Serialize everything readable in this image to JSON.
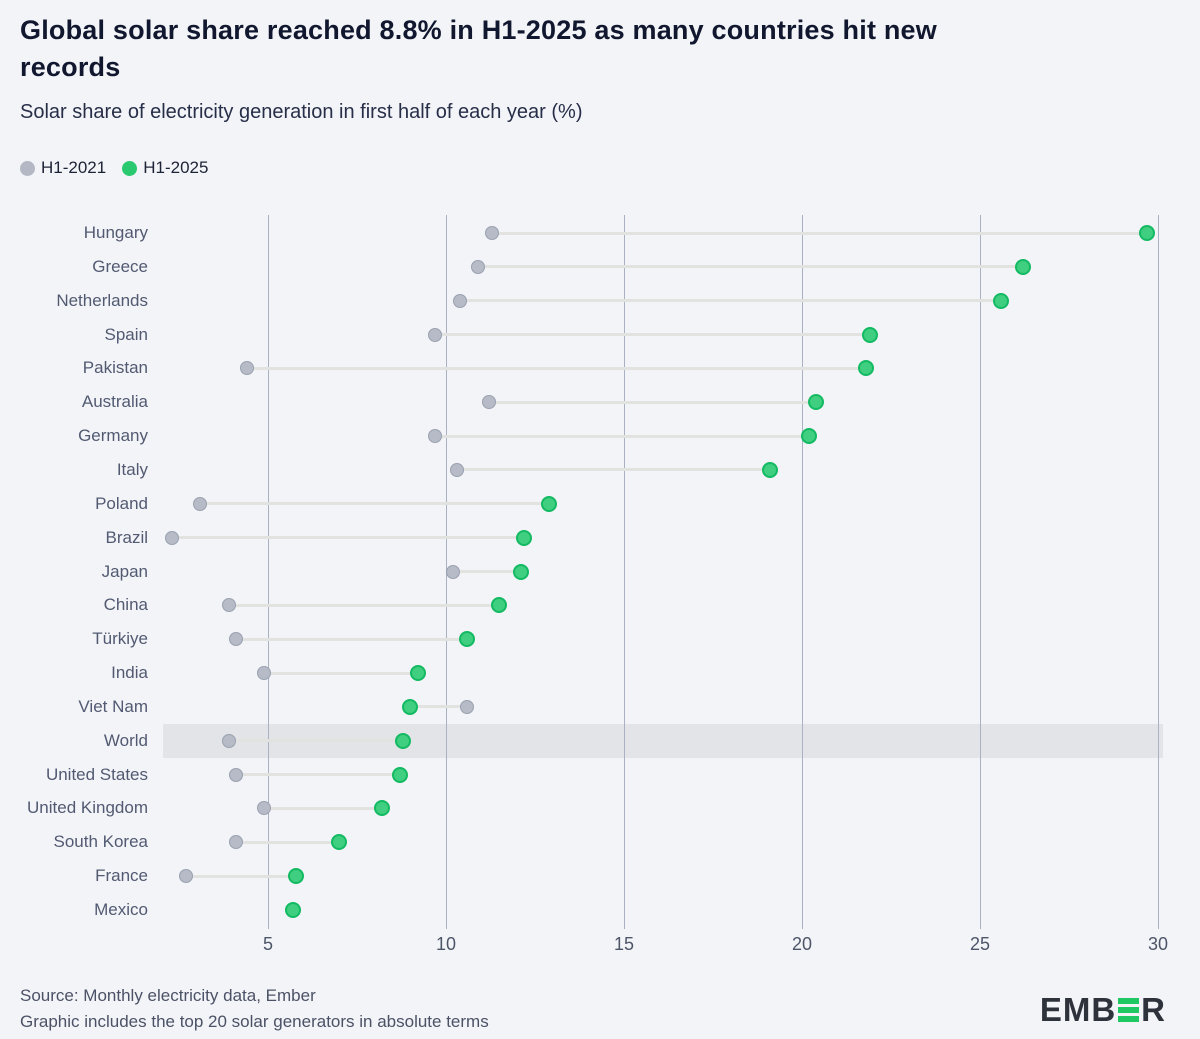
{
  "title": "Global solar share reached 8.8% in H1-2025 as many countries hit new\nrecords",
  "subtitle": "Solar share of electricity generation in first half of each year (%)",
  "legend": [
    {
      "label": "H1-2021",
      "color": "#b3b8c4"
    },
    {
      "label": "H1-2025",
      "color": "#2bc96f"
    }
  ],
  "footer": {
    "source_line": "Source: Monthly electricity data, Ember",
    "note_line": "Graphic includes the top 20 solar generators in absolute terms"
  },
  "logo": {
    "left_text": "EMB",
    "right_text": "R",
    "bars_icon": "ember-green-e-icon"
  },
  "colors": {
    "background": "#f3f4f8",
    "title_text": "#10172e",
    "axis_text": "#4d5568",
    "label_text": "#525a72",
    "gridline": "#aab1c3",
    "connector": "#e2e2e0",
    "gray_dot_fill": "#b6bbc7",
    "gray_dot_border": "#99a0af",
    "green_dot_fill": "#40ce81",
    "green_dot_border": "#13ba62",
    "highlight_band": "#e3e4e8",
    "logo_green": "#1fc863"
  },
  "chart_data": {
    "type": "scatter",
    "subtype": "dumbbell-dot-plot",
    "unit": "%",
    "xlabel": "",
    "ylabel": "",
    "x_ticks": [
      5,
      10,
      15,
      20,
      25,
      30
    ],
    "x_range": [
      2.05,
      30.2
    ],
    "grid": "vertical-only",
    "legend_position": "top-left",
    "series_names": [
      "H1-2021",
      "H1-2025"
    ],
    "rows": [
      {
        "country": "Hungary",
        "h1_2021": 11.3,
        "h1_2025": 29.7,
        "highlight": false
      },
      {
        "country": "Greece",
        "h1_2021": 10.9,
        "h1_2025": 26.2,
        "highlight": false
      },
      {
        "country": "Netherlands",
        "h1_2021": 10.4,
        "h1_2025": 25.6,
        "highlight": false
      },
      {
        "country": "Spain",
        "h1_2021": 9.7,
        "h1_2025": 21.9,
        "highlight": false
      },
      {
        "country": "Pakistan",
        "h1_2021": 4.4,
        "h1_2025": 21.8,
        "highlight": false
      },
      {
        "country": "Australia",
        "h1_2021": 11.2,
        "h1_2025": 20.4,
        "highlight": false
      },
      {
        "country": "Germany",
        "h1_2021": 9.7,
        "h1_2025": 20.2,
        "highlight": false
      },
      {
        "country": "Italy",
        "h1_2021": 10.3,
        "h1_2025": 19.1,
        "highlight": false
      },
      {
        "country": "Poland",
        "h1_2021": 3.1,
        "h1_2025": 12.9,
        "highlight": false
      },
      {
        "country": "Brazil",
        "h1_2021": 2.3,
        "h1_2025": 12.2,
        "highlight": false
      },
      {
        "country": "Japan",
        "h1_2021": 10.2,
        "h1_2025": 12.1,
        "highlight": false
      },
      {
        "country": "China",
        "h1_2021": 3.9,
        "h1_2025": 11.5,
        "highlight": false
      },
      {
        "country": "Türkiye",
        "h1_2021": 4.1,
        "h1_2025": 10.6,
        "highlight": false
      },
      {
        "country": "India",
        "h1_2021": 4.9,
        "h1_2025": 9.2,
        "highlight": false
      },
      {
        "country": "Viet Nam",
        "h1_2021": 10.6,
        "h1_2025": 9.0,
        "highlight": false
      },
      {
        "country": "World",
        "h1_2021": 3.9,
        "h1_2025": 8.8,
        "highlight": true
      },
      {
        "country": "United States",
        "h1_2021": 4.1,
        "h1_2025": 8.7,
        "highlight": false
      },
      {
        "country": "United Kingdom",
        "h1_2021": 4.9,
        "h1_2025": 8.2,
        "highlight": false
      },
      {
        "country": "South Korea",
        "h1_2021": 4.1,
        "h1_2025": 7.0,
        "highlight": false
      },
      {
        "country": "France",
        "h1_2021": 2.7,
        "h1_2025": 5.8,
        "highlight": false
      },
      {
        "country": "Mexico",
        "h1_2021": null,
        "h1_2025": 5.7,
        "highlight": false
      }
    ]
  }
}
